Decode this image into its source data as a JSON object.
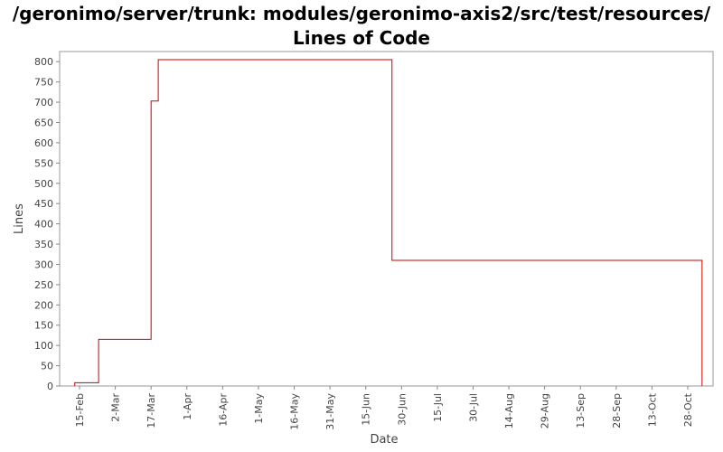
{
  "chart_data": {
    "type": "line",
    "title": "/geronimo/server/trunk: modules/geronimo-axis2/src/test/resources/ Lines of Code",
    "xlabel": "Date",
    "ylabel": "Lines",
    "ylim": [
      0,
      825
    ],
    "y_ticks": [
      0,
      50,
      100,
      150,
      200,
      250,
      300,
      350,
      400,
      450,
      500,
      550,
      600,
      650,
      700,
      750,
      800
    ],
    "x_tick_labels": [
      "15-Feb",
      "2-Mar",
      "17-Mar",
      "1-Apr",
      "16-Apr",
      "1-May",
      "16-May",
      "31-May",
      "15-Jun",
      "30-Jun",
      "15-Jul",
      "30-Jul",
      "14-Aug",
      "29-Aug",
      "13-Sep",
      "28-Sep",
      "13-Oct",
      "28-Oct"
    ],
    "grid": false,
    "step": true,
    "series": [
      {
        "color": "#cc0000",
        "points": [
          {
            "x": "13-Feb",
            "y": 8
          },
          {
            "x": "23-Feb",
            "y": 115
          },
          {
            "x": "17-Mar",
            "y": 703
          },
          {
            "x": "20-Mar",
            "y": 805
          },
          {
            "x": "26-Jun",
            "y": 310
          },
          {
            "x": "3-Nov",
            "y": 0
          }
        ]
      }
    ]
  }
}
